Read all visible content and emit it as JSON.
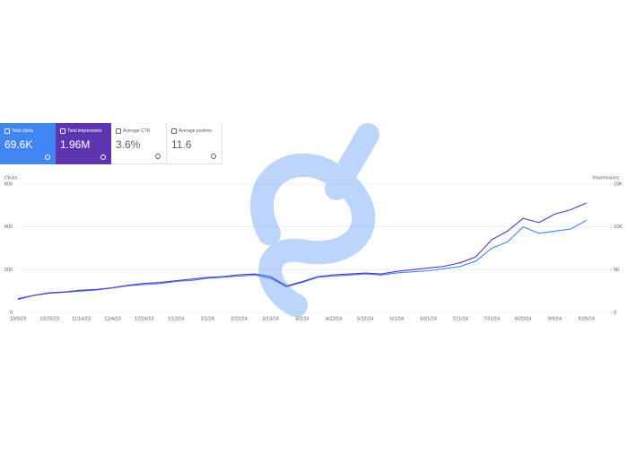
{
  "metrics": [
    {
      "label": "Total clicks",
      "value": "69.6K"
    },
    {
      "label": "Total impressions",
      "value": "1.96M"
    },
    {
      "label": "Average CTR",
      "value": "3.6%"
    },
    {
      "label": "Average position",
      "value": "11.6"
    }
  ],
  "chart_data": {
    "type": "line",
    "ylabel": "Clicks",
    "y2label": "Impressions",
    "categories": [
      "10/5/23",
      null,
      "10/25/23",
      null,
      "11/14/23",
      null,
      "12/4/23",
      null,
      "12/24/23",
      null,
      "1/13/24",
      null,
      "2/2/24",
      null,
      "2/22/24",
      null,
      "3/13/24",
      null,
      "4/2/24",
      null,
      "4/22/24",
      null,
      "5/12/24",
      null,
      "6/1/24",
      null,
      "6/21/24",
      null,
      "7/11/24",
      null,
      "7/31/24",
      null,
      "8/20/24",
      null,
      "9/9/24",
      null,
      "9/29/24"
    ],
    "series": [
      {
        "name": "Clicks",
        "color": "#4285f4",
        "axis": "y",
        "values": [
          60,
          80,
          90,
          95,
          100,
          105,
          115,
          125,
          130,
          135,
          145,
          150,
          160,
          165,
          170,
          175,
          160,
          120,
          140,
          165,
          170,
          175,
          180,
          175,
          185,
          190,
          195,
          205,
          215,
          240,
          300,
          330,
          400,
          370,
          380,
          390,
          430
        ]
      },
      {
        "name": "Impressions",
        "color": "#5e35b1",
        "axis": "y2",
        "values": [
          1600,
          2000,
          2300,
          2400,
          2600,
          2700,
          2900,
          3200,
          3400,
          3500,
          3700,
          3900,
          4100,
          4200,
          4400,
          4500,
          4200,
          3100,
          3600,
          4200,
          4400,
          4500,
          4600,
          4500,
          4800,
          5000,
          5200,
          5400,
          5800,
          6500,
          8500,
          9500,
          11000,
          10500,
          11500,
          12000,
          12800
        ]
      }
    ],
    "ylim": [
      0,
      600
    ],
    "yticks": [
      0,
      200,
      400,
      600
    ],
    "y2lim": [
      0,
      15000
    ],
    "y2ticks": [
      0,
      {
        "value": 5000,
        "label": "5K"
      },
      {
        "value": 10000,
        "label": "10K"
      },
      {
        "value": 15000,
        "label": "15K"
      }
    ],
    "grid": true
  }
}
